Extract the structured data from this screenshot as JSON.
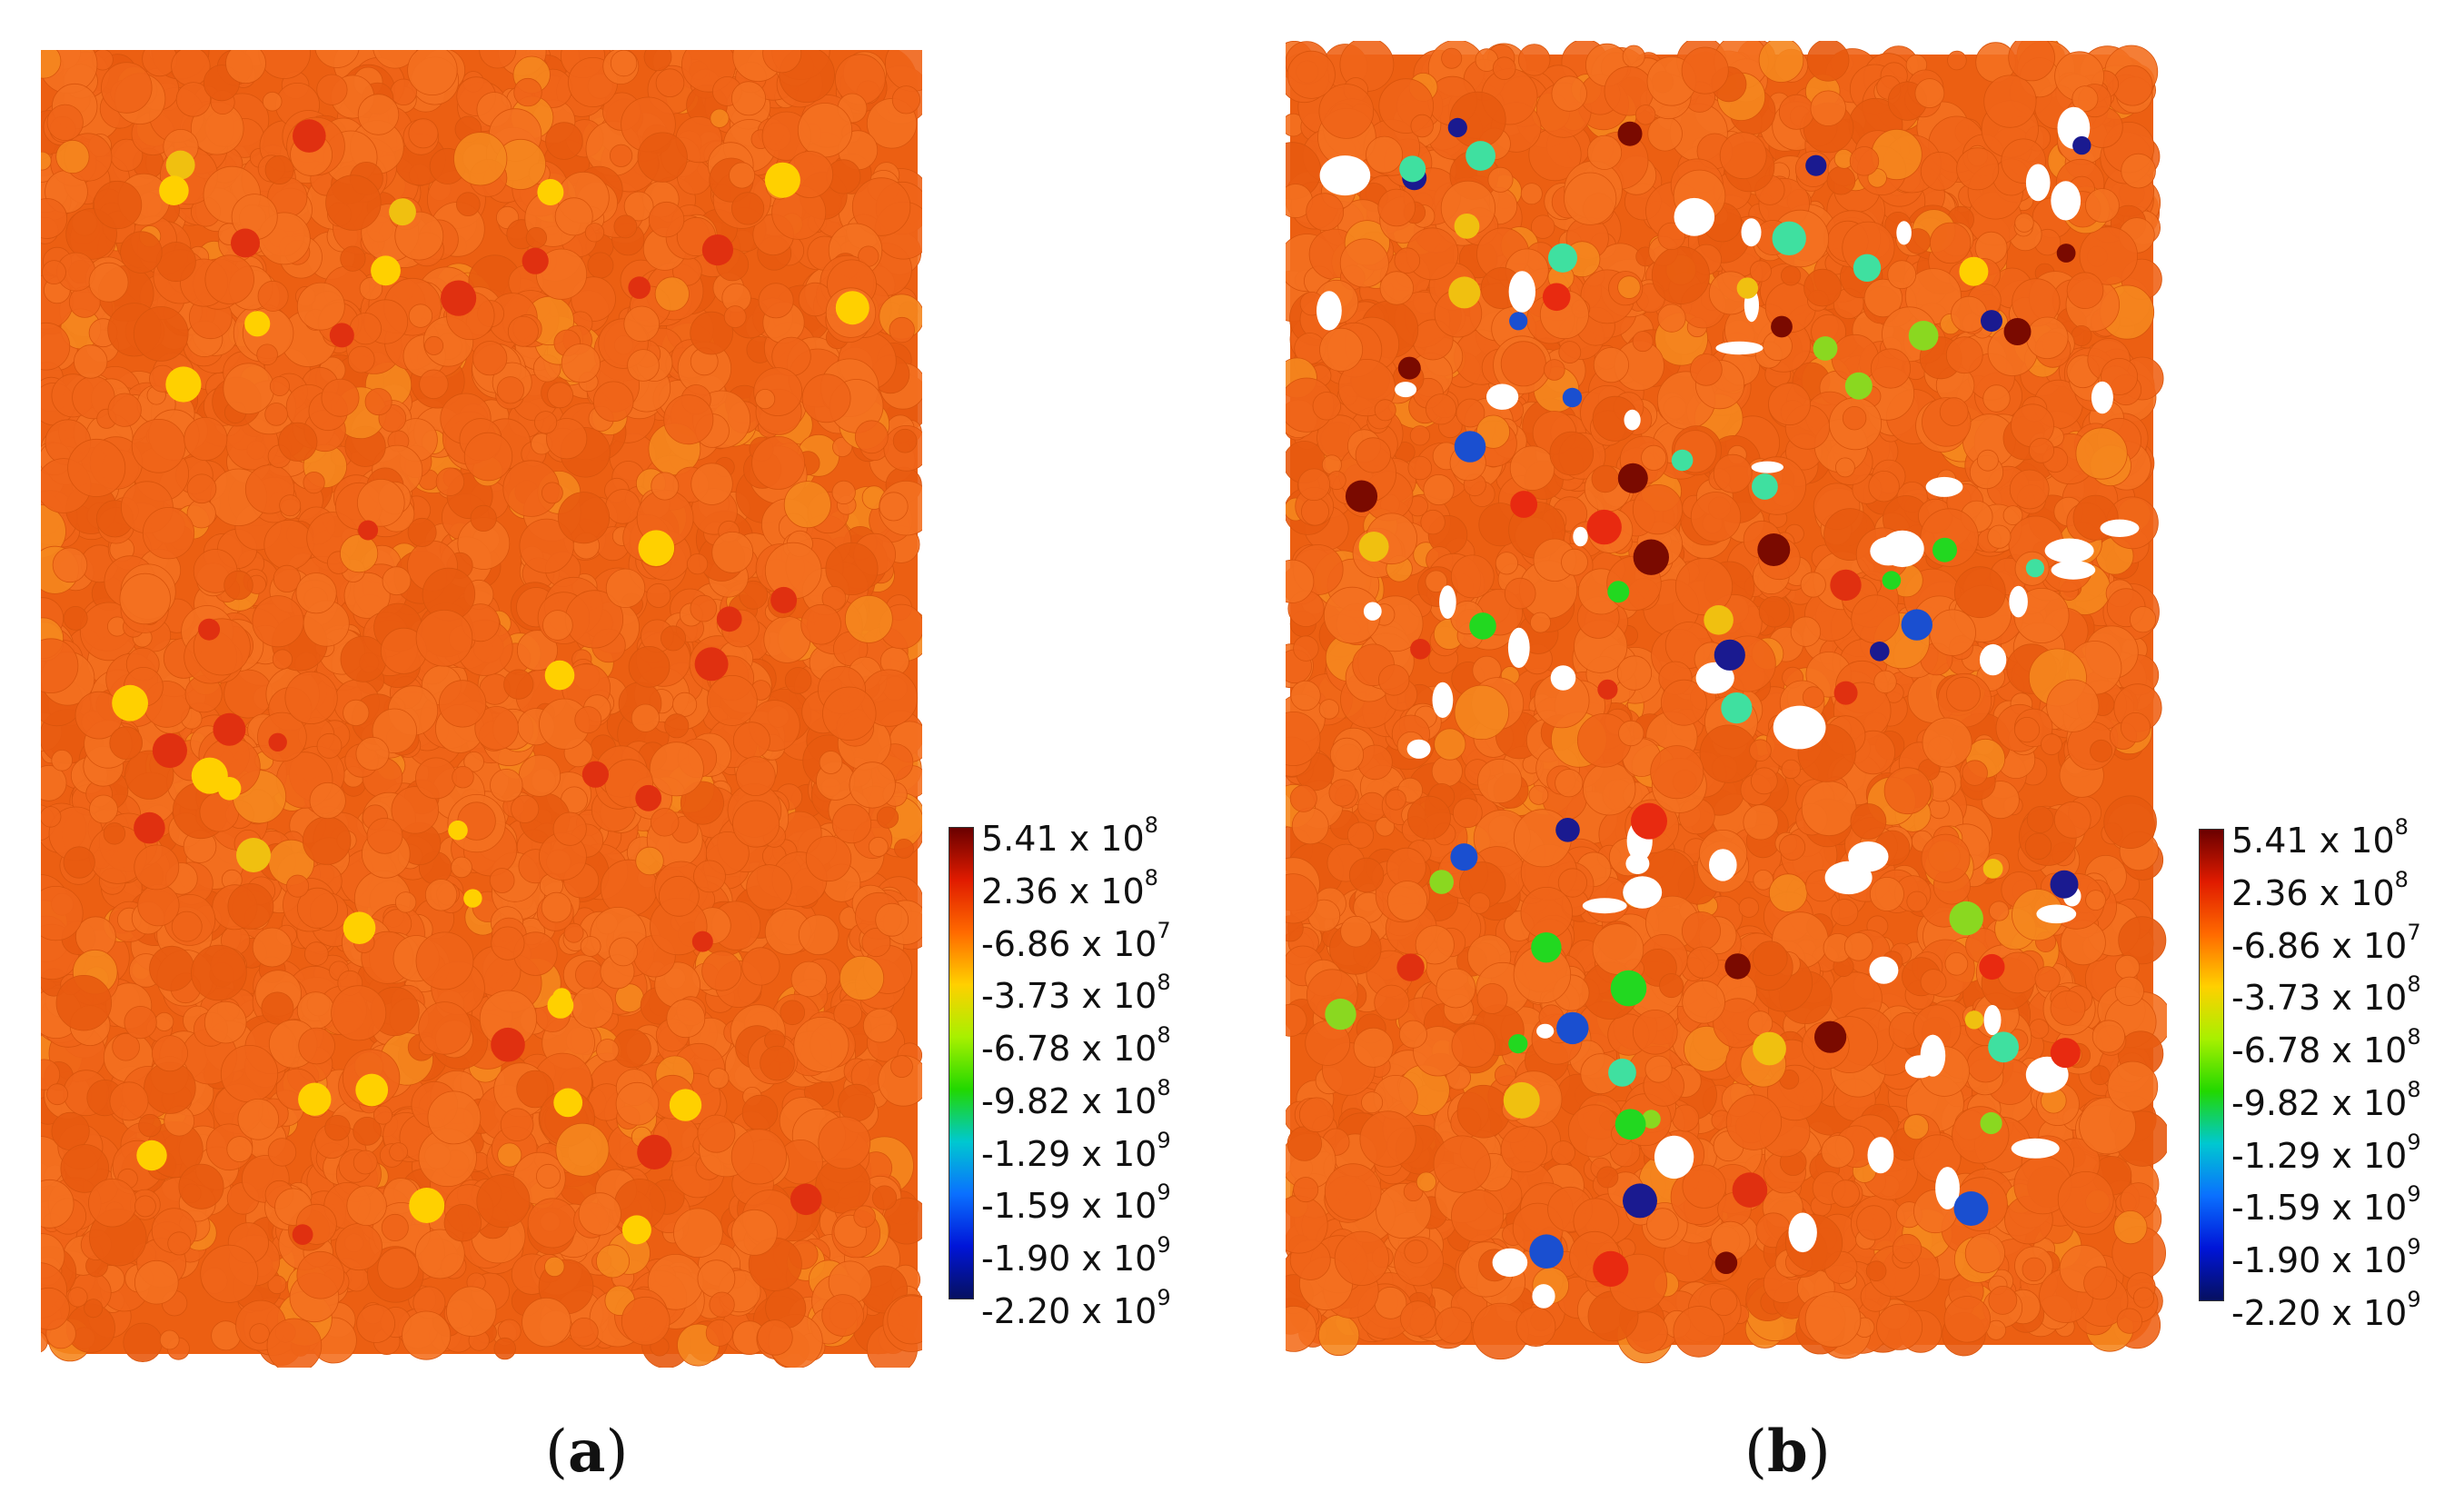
{
  "panels": [
    {
      "id": "a",
      "label": "a",
      "legend": {
        "title": "",
        "mantissas": [
          "5.41",
          "2.36",
          "-6.86",
          "-3.73",
          "-6.78",
          "-9.82",
          "-1.29",
          "-1.59",
          "-1.90",
          "-2.20"
        ],
        "exponents": [
          "8",
          "8",
          "7",
          "8",
          "8",
          "8",
          "9",
          "9",
          "9",
          "9"
        ],
        "times": "x 10",
        "colors": [
          "#6a0000",
          "#e01b00",
          "#ff6a00",
          "#ffd000",
          "#a8f000",
          "#22d800",
          "#00c8d0",
          "#0a70ff",
          "#0015d8",
          "#061060"
        ]
      }
    },
    {
      "id": "b",
      "label": "b",
      "legend": {
        "title": "",
        "mantissas": [
          "5.41",
          "2.36",
          "-6.86",
          "-3.73",
          "-6.78",
          "-9.82",
          "-1.29",
          "-1.59",
          "-1.90",
          "-2.20"
        ],
        "exponents": [
          "8",
          "8",
          "7",
          "8",
          "8",
          "8",
          "9",
          "9",
          "9",
          "9"
        ],
        "times": "x 10",
        "colors": [
          "#6a0000",
          "#e01b00",
          "#ff6a00",
          "#ffd000",
          "#a8f000",
          "#22d800",
          "#00c8d0",
          "#0a70ff",
          "#0015d8",
          "#061060"
        ]
      }
    }
  ],
  "base_particle_color": "#f0641a",
  "caption_a": "a",
  "caption_b": "b"
}
